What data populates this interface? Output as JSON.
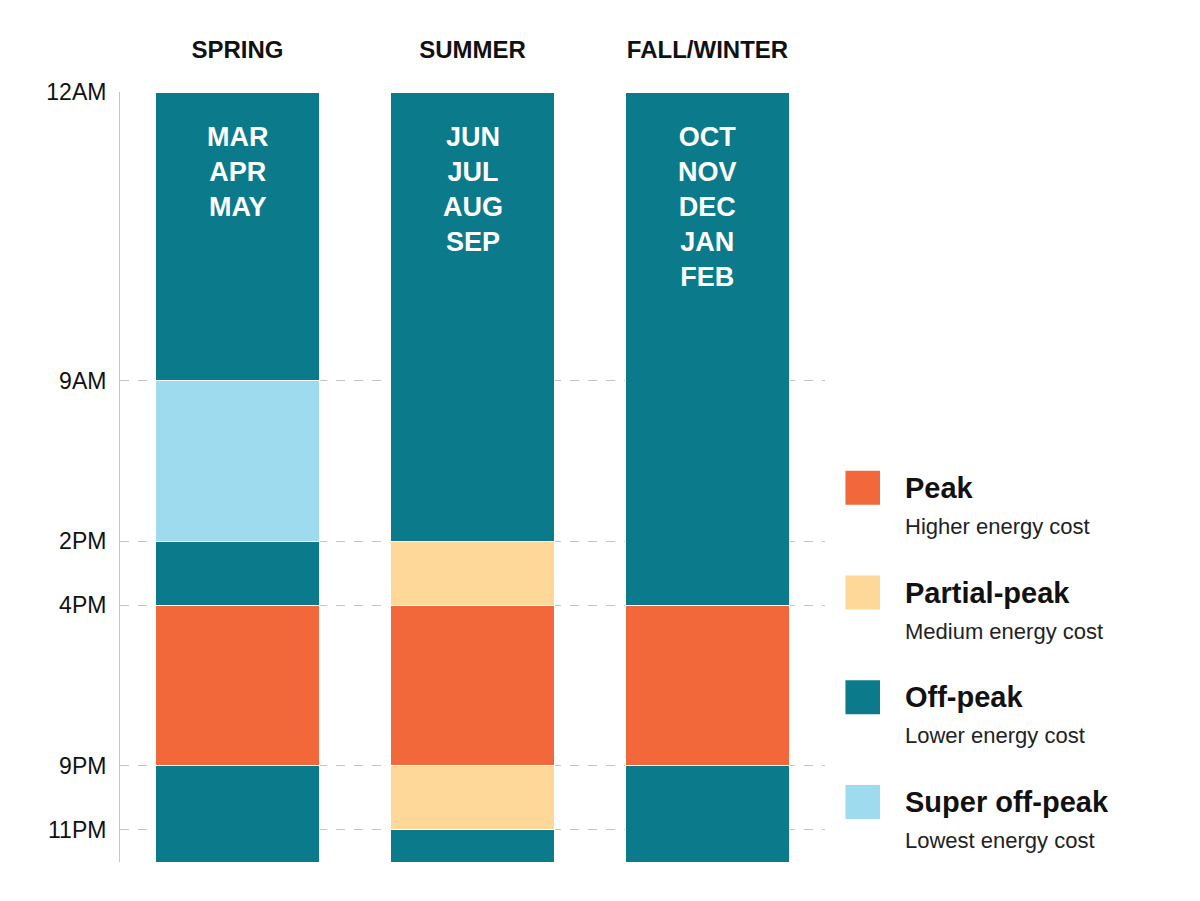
{
  "chart_data": {
    "type": "bar",
    "stacked": true,
    "orientation": "vertical",
    "categories": [
      "SPRING",
      "SUMMER",
      "FALL/WINTER"
    ],
    "month_labels": [
      [
        "MAR",
        "APR",
        "MAY"
      ],
      [
        "JUN",
        "JUL",
        "AUG",
        "SEP"
      ],
      [
        "OCT",
        "NOV",
        "DEC",
        "JAN",
        "FEB"
      ]
    ],
    "series": [
      {
        "name": "Peak",
        "description": "Higher energy cost",
        "color": "#f2683b"
      },
      {
        "name": "Partial-peak",
        "description": "Medium energy cost",
        "color": "#fdd899"
      },
      {
        "name": "Off-peak",
        "description": "Lower energy cost",
        "color": "#0b7a8a"
      },
      {
        "name": "Super off-peak",
        "description": "Lowest energy cost",
        "color": "#9fdbee"
      }
    ],
    "segments": [
      [
        {
          "series": "Off-peak",
          "value": 9
        },
        {
          "series": "Super off-peak",
          "value": 5
        },
        {
          "series": "Off-peak",
          "value": 2
        },
        {
          "series": "Peak",
          "value": 5
        },
        {
          "series": "Off-peak",
          "value": 3
        }
      ],
      [
        {
          "series": "Off-peak",
          "value": 14
        },
        {
          "series": "Partial-peak",
          "value": 2
        },
        {
          "series": "Peak",
          "value": 5
        },
        {
          "series": "Partial-peak",
          "value": 2
        },
        {
          "series": "Off-peak",
          "value": 1
        }
      ],
      [
        {
          "series": "Off-peak",
          "value": 16
        },
        {
          "series": "Peak",
          "value": 5
        },
        {
          "series": "Off-peak",
          "value": 3
        }
      ]
    ],
    "ylim": [
      24,
      0
    ],
    "yticks": [
      {
        "value": 0,
        "label": "12AM"
      },
      {
        "value": 9,
        "label": "9AM"
      },
      {
        "value": 14,
        "label": "2PM"
      },
      {
        "value": 16,
        "label": "4PM"
      },
      {
        "value": 21,
        "label": "9PM"
      },
      {
        "value": 23,
        "label": "11PM"
      }
    ],
    "grid": true,
    "legend": "right"
  }
}
